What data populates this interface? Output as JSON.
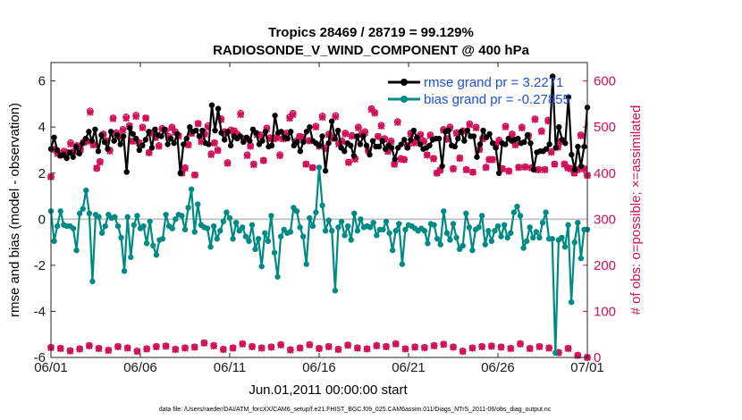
{
  "chart_data": {
    "type": "line",
    "title_line1": "Tropics 28469 / 28719 = 99.129%",
    "title_line2": "RADIOSONDE_V_WIND_COMPONENT @ 400 hPa",
    "xlabel": "Jun.01,2011 00:00:00 start",
    "ylabel": "rmse and bias (model - observation)",
    "ylabel_right": "# of obs: o=possible; ×=assimilated",
    "x_ticks": [
      "06/01",
      "06/06",
      "06/11",
      "06/16",
      "06/21",
      "06/26",
      "07/01"
    ],
    "y_ticks": [
      "-6",
      "-4",
      "-2",
      "0",
      "2",
      "4",
      "6"
    ],
    "y_ticks_right": [
      "0",
      "100",
      "200",
      "300",
      "400",
      "500",
      "600"
    ],
    "ylim": [
      -6,
      6.8
    ],
    "ylim_right": [
      0,
      640
    ],
    "xlim": [
      0,
      30
    ],
    "footer": "data file: /Users/raeder/DAI/ATM_forcXX/CAM6_setup/f.e21.FHIST_BGC.f09_025.CAM6assim.011/Diags_NTrS_2011-06/obs_diag_output.nc",
    "series": [
      {
        "name": "rmse grand pr = 3.2271",
        "color": "#000000",
        "values": [
          3.05,
          3.55,
          3.0,
          2.75,
          2.8,
          2.65,
          2.9,
          2.7,
          3.15,
          2.85,
          3.3,
          3.5,
          3.8,
          3.4,
          3.9,
          2.95,
          3.65,
          3.35,
          3.05,
          3.8,
          3.4,
          3.65,
          3.25,
          3.6,
          2.05,
          3.95,
          3.7,
          3.5,
          3.0,
          3.2,
          3.45,
          3.8,
          3.1,
          3.9,
          3.65,
          3.6,
          3.9,
          3.25,
          3.5,
          3.3,
          3.7,
          2.0,
          3.25,
          3.5,
          4.0,
          3.8,
          3.85,
          3.6,
          3.85,
          3.3,
          3.25,
          4.95,
          3.85,
          4.8,
          3.75,
          3.45,
          3.8,
          3.2,
          3.6,
          3.5,
          3.6,
          3.35,
          3.55,
          3.4,
          3.9,
          3.75,
          3.25,
          3.4,
          3.8,
          3.15,
          3.2,
          4.5,
          3.75,
          3.8,
          3.55,
          3.5,
          3.8,
          3.2,
          3.35,
          2.95,
          3.35,
          3.8,
          4.0,
          3.4,
          3.3,
          3.2,
          3.6,
          2.1,
          3.3,
          4.25,
          3.5,
          3.85,
          3.1,
          2.95,
          3.3,
          3.2,
          2.75,
          3.6,
          3.25,
          3.6,
          3.2,
          2.8,
          3.4,
          3.15,
          3.15,
          3.4,
          3.05,
          3.2,
          3.1,
          2.6,
          3.1,
          3.25,
          3.45,
          3.1,
          3.45,
          3.85,
          3.55,
          3.25,
          3.05,
          3.1,
          3.2,
          3.45,
          3.5,
          3.5,
          2.3,
          3.8,
          3.85,
          3.2,
          3.15,
          3.5,
          3.8,
          3.4,
          3.85,
          3.6,
          3.6,
          2.7,
          3.25,
          3.85,
          3.55,
          3.7,
          3.3,
          3.1,
          2.0,
          3.3,
          3.25,
          3.5,
          3.4,
          3.45,
          3.5,
          3.3,
          3.35,
          3.65,
          3.3,
          2.15,
          2.9,
          2.95,
          2.95,
          3.05,
          3.25,
          6.2,
          3.1,
          4.0,
          3.45,
          3.3,
          5.3,
          2.8,
          2.15,
          3.15,
          2.3,
          3.15,
          4.85
        ]
      },
      {
        "name": "bias grand pr = -0.27855",
        "color": "#008a86",
        "values": [
          0.35,
          -0.95,
          -0.3,
          0.35,
          -0.25,
          -0.3,
          -0.3,
          -0.4,
          -1.35,
          0.25,
          0.45,
          1.25,
          0.25,
          -2.7,
          0.2,
          0.1,
          -0.6,
          -0.3,
          0.2,
          0.05,
          0.1,
          -0.3,
          -0.8,
          -2.25,
          0.1,
          -1.65,
          -0.25,
          0.15,
          -0.4,
          -0.3,
          -1.05,
          -0.1,
          -1.15,
          -1.55,
          -0.9,
          -0.85,
          0.2,
          -0.3,
          -0.4,
          0.0,
          0.2,
          0.15,
          -0.45,
          0.5,
          1.3,
          -0.55,
          0.65,
          -0.25,
          -0.35,
          -0.4,
          -1.2,
          -0.3,
          -0.85,
          -0.5,
          -0.1,
          0.3,
          0.05,
          -0.85,
          -0.15,
          -0.5,
          -0.35,
          -0.75,
          -0.95,
          -0.25,
          -1.3,
          -0.85,
          -2.05,
          -0.6,
          -0.95,
          0.15,
          -1.45,
          -2.5,
          -0.75,
          -0.45,
          -0.6,
          -0.55,
          0.5,
          0.35,
          -0.35,
          -0.75,
          -1.95,
          0.05,
          -0.3,
          0.3,
          2.25,
          0.6,
          -0.5,
          -0.05,
          -0.5,
          -3.1,
          -0.35,
          -0.1,
          -0.7,
          -0.3,
          -0.9,
          0.25,
          -0.5,
          0.0,
          -0.35,
          -0.3,
          -0.35,
          -0.15,
          -0.7,
          -0.45,
          -0.45,
          -0.1,
          -0.6,
          -1.35,
          -0.5,
          -0.2,
          -1.95,
          -0.45,
          -0.25,
          -0.3,
          -0.4,
          -0.5,
          -0.4,
          -0.5,
          -1.05,
          -0.2,
          -0.25,
          -0.85,
          -1.1,
          0.35,
          -0.6,
          -0.9,
          -0.2,
          -0.8,
          -1.3,
          -1.15,
          0.25,
          -0.35,
          -1.35,
          -0.45,
          -0.35,
          0.15,
          -1.1,
          -0.5,
          -0.95,
          -0.5,
          -0.3,
          -0.75,
          -0.25,
          -0.8,
          -0.6,
          0.3,
          0.55,
          0.15,
          -1.25,
          -0.95,
          -0.35,
          -0.8,
          -0.55,
          -0.8,
          -0.15,
          0.3,
          -0.85,
          -0.85,
          -5.8,
          -0.9,
          -0.8,
          -1.2,
          -0.25,
          -3.6,
          -1.0,
          -0.15,
          -1.7,
          -0.45,
          -0.45
        ]
      }
    ],
    "obs_possible": [
      392,
      452,
      445,
      440,
      448,
      445,
      466,
      447,
      460,
      452,
      468,
      470,
      535,
      462,
      410,
      425,
      485,
      470,
      450,
      520,
      488,
      480,
      495,
      522,
      503,
      470,
      526,
      466,
      500,
      520,
      445,
      488,
      478,
      460,
      497,
      493,
      480,
      500,
      490,
      482,
      400,
      412,
      462,
      487,
      396,
      508,
      470,
      486,
      503,
      442,
      466,
      450,
      518,
      490,
      423,
      494,
      492,
      485,
      530,
      475,
      440,
      460,
      420,
      485,
      483,
      428,
      498,
      477,
      475,
      478,
      440,
      476,
      487,
      522,
      530,
      470,
      480,
      478,
      420,
      471,
      412,
      502,
      460,
      524,
      455,
      485,
      477,
      525,
      465,
      470,
      487,
      424,
      482,
      432,
      500,
      485,
      490,
      450,
      540,
      532,
      480,
      504,
      475,
      448,
      470,
      420,
      512,
      432,
      430,
      460,
      487,
      467,
      474,
      484,
      470,
      440,
      483,
      432,
      400,
      407,
      495,
      475,
      500,
      410,
      488,
      433,
      492,
      408,
      507,
      402,
      500,
      452,
      476,
      413,
      430,
      430,
      462,
      472,
      410,
      502,
      405,
      485,
      463,
      413,
      500,
      414,
      482,
      412,
      518,
      408,
      492,
      408,
      515,
      447,
      420,
      458,
      470,
      420,
      412,
      410,
      400,
      408,
      483,
      410,
      395
    ],
    "obs_assimilated": [
      392,
      451,
      442,
      439,
      446,
      444,
      463,
      446,
      458,
      451,
      466,
      469,
      532,
      461,
      411,
      424,
      483,
      469,
      448,
      518,
      486,
      479,
      493,
      519,
      502,
      469,
      523,
      465,
      498,
      519,
      444,
      486,
      477,
      458,
      495,
      491,
      478,
      498,
      488,
      480,
      400,
      410,
      461,
      486,
      396,
      507,
      468,
      484,
      500,
      440,
      465,
      449,
      516,
      488,
      421,
      491,
      491,
      483,
      527,
      473,
      438,
      458,
      418,
      483,
      481,
      427,
      496,
      475,
      474,
      476,
      438,
      474,
      485,
      519,
      527,
      468,
      479,
      477,
      419,
      470,
      412,
      500,
      458,
      521,
      453,
      483,
      475,
      522,
      463,
      468,
      485,
      423,
      480,
      430,
      498,
      483,
      488,
      449,
      538,
      530,
      479,
      502,
      473,
      447,
      468,
      419,
      510,
      430,
      429,
      458,
      485,
      465,
      472,
      482,
      468,
      439,
      481,
      431,
      400,
      406,
      493,
      473,
      498,
      409,
      486,
      432,
      490,
      407,
      505,
      402,
      498,
      451,
      474,
      412,
      429,
      429,
      460,
      470,
      409,
      500,
      404,
      483,
      461,
      412,
      498,
      413,
      480,
      411,
      516,
      407,
      490,
      407,
      513,
      445,
      419,
      456,
      468,
      419,
      411,
      409,
      400,
      407,
      481,
      409,
      395
    ],
    "obs_bottom_possible": [
      22,
      20,
      15,
      19,
      26,
      20,
      16,
      24,
      21,
      14,
      19,
      24,
      25,
      18,
      21,
      23,
      32,
      26,
      18,
      21,
      30,
      24,
      21,
      23,
      28,
      17,
      21,
      28,
      20,
      24,
      18,
      27,
      21,
      19,
      26,
      24,
      30,
      19,
      23,
      22,
      26,
      29,
      23,
      14,
      21,
      24,
      25,
      23,
      20,
      30,
      20,
      24,
      21,
      11,
      20,
      5,
      0
    ],
    "obs_bottom_assimilated": [
      21,
      19,
      14,
      18,
      25,
      19,
      15,
      23,
      20,
      13,
      18,
      23,
      24,
      17,
      20,
      22,
      31,
      25,
      17,
      20,
      29,
      23,
      20,
      22,
      27,
      16,
      20,
      27,
      19,
      23,
      17,
      26,
      20,
      18,
      25,
      23,
      29,
      18,
      22,
      21,
      25,
      28,
      22,
      13,
      20,
      23,
      24,
      22,
      19,
      29,
      19,
      23,
      20,
      10,
      19,
      4,
      0
    ],
    "legend_placement": "top-right"
  }
}
